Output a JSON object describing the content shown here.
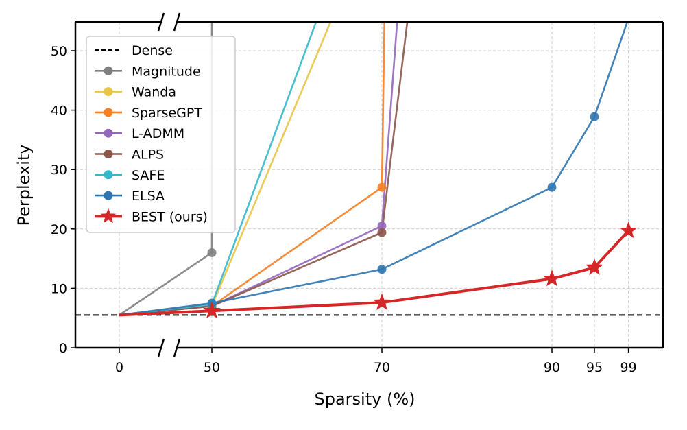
{
  "chart_data": {
    "type": "line",
    "xlabel": "Sparsity (%)",
    "ylabel": "Perplexity",
    "x_ticks": [
      "0",
      "50",
      "70",
      "90",
      "95",
      "99"
    ],
    "y_ticks": [
      "0",
      "10",
      "20",
      "30",
      "40",
      "50"
    ],
    "ylim": [
      0,
      55
    ],
    "x_axis_break": "between 0 and 50",
    "grid": true,
    "legend_position": "upper-left",
    "dense_value": 5.5,
    "series": [
      {
        "name": "Dense",
        "color": "#000000",
        "style": "dashed",
        "marker": "none",
        "x": [],
        "y": []
      },
      {
        "name": "Magnitude",
        "color": "#7f7f7f",
        "marker": "circle",
        "x": [
          0,
          50,
          50
        ],
        "y": [
          5.5,
          16.0,
          55
        ]
      },
      {
        "name": "Wanda",
        "color": "#e8c547",
        "marker": "circle",
        "x": [
          0,
          50,
          64
        ],
        "y": [
          5.5,
          7.0,
          55
        ]
      },
      {
        "name": "SparseGPT",
        "color": "#f58025",
        "marker": "circle",
        "x": [
          0,
          50,
          70,
          70.3
        ],
        "y": [
          5.5,
          7.0,
          27.0,
          55
        ]
      },
      {
        "name": "L-ADMM",
        "color": "#9467bd",
        "marker": "circle",
        "x": [
          0,
          50,
          70,
          71.8
        ],
        "y": [
          5.5,
          7.0,
          20.5,
          55
        ]
      },
      {
        "name": "ALPS",
        "color": "#8c564b",
        "marker": "circle",
        "x": [
          0,
          50,
          70,
          73
        ],
        "y": [
          5.5,
          7.0,
          19.4,
          55
        ]
      },
      {
        "name": "SAFE",
        "color": "#35b8c9",
        "marker": "circle",
        "x": [
          0,
          50,
          62.3
        ],
        "y": [
          5.5,
          7.3,
          55
        ]
      },
      {
        "name": "ELSA",
        "color": "#2f75b0",
        "marker": "circle",
        "x": [
          0,
          50,
          70,
          90,
          95,
          98.9
        ],
        "y": [
          5.5,
          7.5,
          13.2,
          27.0,
          38.9,
          55
        ]
      },
      {
        "name": "BEST (ours)",
        "color": "#d62728",
        "marker": "star",
        "x": [
          0,
          50,
          70,
          90,
          95,
          99
        ],
        "y": [
          5.5,
          6.2,
          7.6,
          11.6,
          13.5,
          19.7
        ]
      }
    ]
  }
}
